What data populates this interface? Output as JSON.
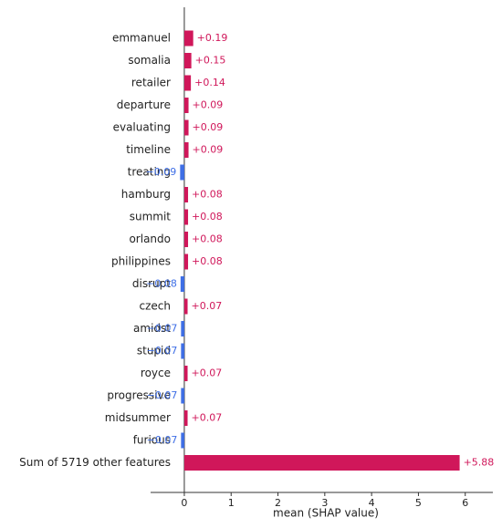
{
  "chart_data": {
    "type": "bar",
    "orientation": "horizontal",
    "categories": [
      "emmanuel",
      "somalia",
      "retailer",
      "departure",
      "evaluating",
      "timeline",
      "treating",
      "hamburg",
      "summit",
      "orlando",
      "philippines",
      "disrupt",
      "czech",
      "amidst",
      "stupid",
      "royce",
      "progressive",
      "midsummer",
      "furious",
      "Sum of 5719 other features"
    ],
    "values": [
      0.19,
      0.15,
      0.14,
      0.09,
      0.09,
      0.09,
      -0.09,
      0.08,
      0.08,
      0.08,
      0.08,
      -0.08,
      0.07,
      -0.07,
      -0.07,
      0.07,
      -0.07,
      0.07,
      -0.07,
      5.88
    ],
    "value_labels": [
      "+0.19",
      "+0.15",
      "+0.14",
      "+0.09",
      "+0.09",
      "+0.09",
      "−0.09",
      "+0.08",
      "+0.08",
      "+0.08",
      "+0.08",
      "−0.08",
      "+0.07",
      "−0.07",
      "−0.07",
      "+0.07",
      "−0.07",
      "+0.07",
      "−0.07",
      "+5.88"
    ],
    "positive_color": "#d0175a",
    "negative_color": "#3f6fe6",
    "xlabel": "mean (SHAP value)",
    "xlim": [
      -0.72,
      6.59
    ],
    "xticks": [
      0,
      1,
      2,
      3,
      4,
      5,
      6
    ]
  }
}
